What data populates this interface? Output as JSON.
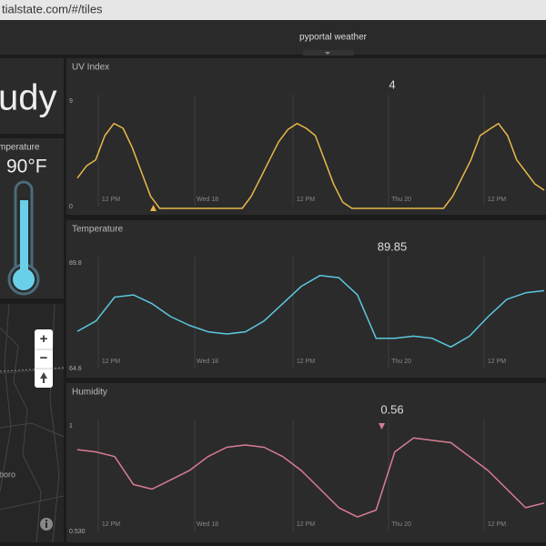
{
  "browser": {
    "url": "tialstate.com/#/tiles"
  },
  "header": {
    "title": "pyportal weather"
  },
  "tiles": {
    "weather": {
      "text": "udy"
    },
    "temperature": {
      "label": "mperature",
      "value": "90°F"
    },
    "map": {
      "place": "boro",
      "controls": [
        "+",
        "−"
      ]
    }
  },
  "charts": [
    {
      "type": "line",
      "title": "UV Index",
      "current": 4,
      "color": "#e8b84a",
      "ylim": [
        0,
        9
      ],
      "yticks": [
        0,
        9
      ],
      "xlabels": [
        "12 PM",
        "Wed 18",
        "12 PM",
        "Thu 20",
        "12 PM"
      ],
      "values": [
        2.5,
        3.5,
        4,
        6,
        7,
        6.6,
        5,
        3,
        1,
        0,
        0,
        0,
        0,
        0,
        0,
        0,
        0,
        0,
        0,
        1,
        2.5,
        4,
        5.5,
        6.5,
        7,
        6.6,
        6,
        4,
        2,
        0.5,
        0,
        0,
        0,
        0,
        0,
        0,
        0,
        0,
        0,
        0,
        0,
        1,
        2.5,
        4,
        6,
        6.5,
        7,
        6,
        4,
        3,
        2,
        1.5
      ]
    },
    {
      "type": "line",
      "title": "Temperature",
      "current": 89.85,
      "color": "#5bc8e0",
      "ylim": [
        64.6,
        89.8
      ],
      "yticks": [
        64.6,
        89.8
      ],
      "xlabels": [
        "12 PM",
        "Wed 18",
        "12 PM",
        "Thu 20",
        "12 PM"
      ],
      "values": [
        73.6,
        76,
        81.5,
        82,
        80,
        77,
        75,
        73.5,
        73,
        73.5,
        76,
        80,
        84,
        86.5,
        86,
        82,
        72,
        72,
        72.5,
        72,
        70,
        72.5,
        77,
        81,
        82.5,
        83
      ]
    },
    {
      "type": "line",
      "title": "Humidity",
      "current": 0.56,
      "color": "#d97c93",
      "ylim": [
        0.53,
        1
      ],
      "yticks": [
        {
          "value": 0.53,
          "label": "0.530"
        },
        1
      ],
      "xlabels": [
        "12 PM",
        "Wed 18",
        "12 PM",
        "Thu 20",
        "12 PM"
      ],
      "values": [
        0.89,
        0.88,
        0.86,
        0.74,
        0.72,
        0.76,
        0.8,
        0.86,
        0.9,
        0.91,
        0.9,
        0.86,
        0.8,
        0.72,
        0.64,
        0.6,
        0.63,
        0.88,
        0.94,
        0.93,
        0.92,
        0.86,
        0.8,
        0.72,
        0.64,
        0.66
      ]
    }
  ]
}
